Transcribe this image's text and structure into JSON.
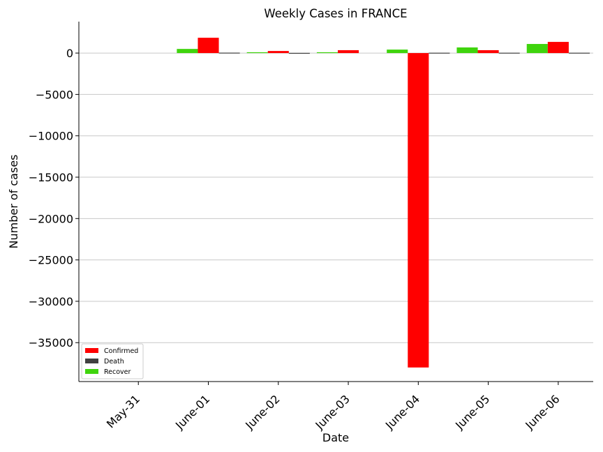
{
  "chart_data": {
    "type": "bar",
    "title": "Weekly Cases in FRANCE",
    "xlabel": "Date",
    "ylabel": "Number of cases",
    "categories": [
      "May-31",
      "June-01",
      "June-02",
      "June-03",
      "June-04",
      "June-05",
      "June-06"
    ],
    "series": [
      {
        "name": "Recover",
        "color": "#3fd40d",
        "values": [
          0,
          500,
          100,
          100,
          420,
          680,
          1100
        ]
      },
      {
        "name": "Confirmed",
        "color": "#ff0000",
        "values": [
          0,
          1850,
          250,
          350,
          -38000,
          350,
          1350
        ]
      },
      {
        "name": "Death",
        "color": "#404040",
        "values": [
          0,
          50,
          20,
          0,
          40,
          40,
          40
        ]
      }
    ],
    "legend_order": [
      "Confirmed",
      "Death",
      "Recover"
    ],
    "yticks": [
      0,
      -5000,
      -10000,
      -15000,
      -20000,
      -25000,
      -30000,
      -35000
    ],
    "ylim": [
      -39700,
      3800
    ],
    "grid": "horizontal",
    "legend_position": "lower-left"
  }
}
